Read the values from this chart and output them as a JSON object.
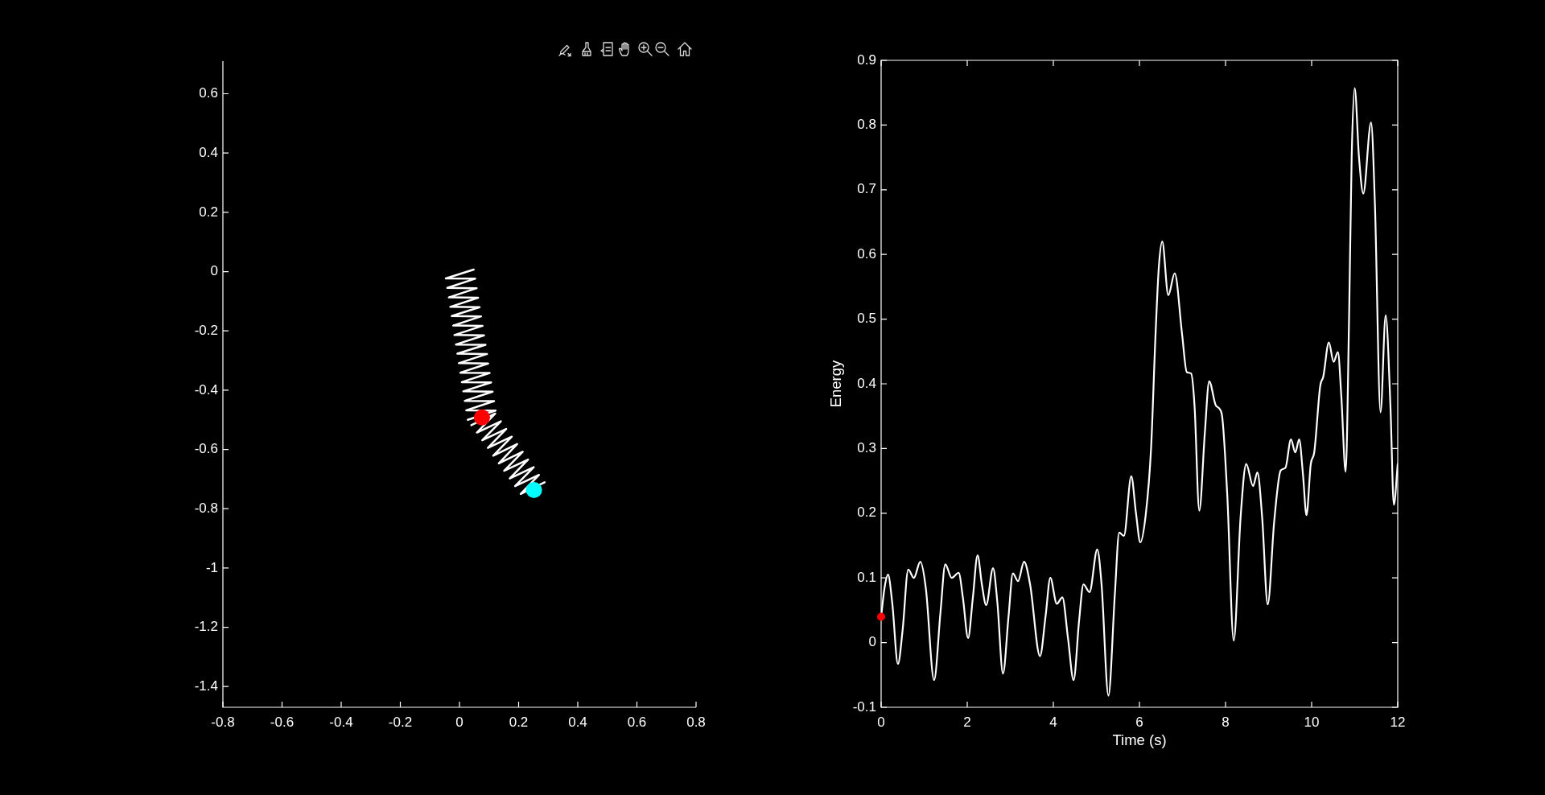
{
  "chart_data": [
    {
      "type": "line",
      "xlim": [
        -0.8,
        0.8
      ],
      "xticks": [
        -0.8,
        -0.6,
        -0.4,
        -0.2,
        0,
        0.2,
        0.4,
        0.6,
        0.8
      ],
      "ylim": [
        -1.47,
        0.71
      ],
      "yticks": [
        -1.4,
        -1.2,
        -1,
        -0.8,
        -0.6,
        -0.4,
        -0.2,
        0,
        0.2,
        0.4,
        0.6
      ],
      "series": [
        {
          "color": "#ffffff",
          "x": [
            0.048,
            -0.046,
            0.053,
            -0.041,
            0.058,
            -0.036,
            0.063,
            -0.031,
            0.068,
            -0.026,
            0.073,
            -0.021,
            0.078,
            -0.017,
            0.083,
            -0.012,
            0.088,
            -0.007,
            0.093,
            -0.002,
            0.097,
            0.003,
            0.102,
            0.008,
            0.107,
            0.013,
            0.112,
            0.018,
            0.117,
            0.023,
            0.122,
            0.028
          ],
          "values": [
            0.007,
            -0.023,
            -0.024,
            -0.055,
            -0.056,
            -0.087,
            -0.088,
            -0.119,
            -0.12,
            -0.15,
            -0.151,
            -0.182,
            -0.183,
            -0.214,
            -0.215,
            -0.246,
            -0.247,
            -0.277,
            -0.278,
            -0.309,
            -0.31,
            -0.341,
            -0.342,
            -0.373,
            -0.374,
            -0.404,
            -0.405,
            -0.436,
            -0.437,
            -0.468,
            -0.469,
            -0.5
          ]
        },
        {
          "color": "#ffffff",
          "x": [
            0.04,
            0.121,
            0.059,
            0.14,
            0.077,
            0.158,
            0.096,
            0.177,
            0.114,
            0.195,
            0.133,
            0.214,
            0.151,
            0.232,
            0.17,
            0.251,
            0.188,
            0.269,
            0.207,
            0.288
          ],
          "values": [
            -0.518,
            -0.479,
            -0.543,
            -0.505,
            -0.569,
            -0.531,
            -0.595,
            -0.557,
            -0.621,
            -0.582,
            -0.647,
            -0.608,
            -0.672,
            -0.634,
            -0.698,
            -0.66,
            -0.724,
            -0.686,
            -0.75,
            -0.711
          ]
        },
        {
          "type": "scatter",
          "color": "#ff0000",
          "marker": "circle",
          "x": [
            0.076
          ],
          "values": [
            -0.492
          ]
        },
        {
          "type": "scatter",
          "color": "#00ffff",
          "marker": "circle",
          "x": [
            0.252
          ],
          "values": [
            -0.737
          ]
        }
      ]
    },
    {
      "type": "line",
      "xlabel": "Time (s)",
      "ylabel": "Energy",
      "xlim": [
        0,
        12
      ],
      "xticks": [
        0,
        2,
        4,
        6,
        8,
        10,
        12
      ],
      "ylim": [
        -0.1,
        0.9
      ],
      "yticks": [
        -0.1,
        0,
        0.1,
        0.2,
        0.3,
        0.4,
        0.5,
        0.6,
        0.7,
        0.8,
        0.9
      ],
      "series": [
        {
          "color": "#ffffff",
          "x": [
            0,
            0.08,
            0.16,
            0.26,
            0.39,
            0.5,
            0.63,
            0.76,
            0.91,
            1.04,
            1.23,
            1.38,
            1.49,
            1.64,
            1.8,
            1.9,
            2.02,
            2.13,
            2.24,
            2.34,
            2.44,
            2.6,
            2.7,
            2.83,
            2.96,
            3.06,
            3.18,
            3.32,
            3.46,
            3.69,
            3.82,
            3.93,
            4.08,
            4.21,
            4.34,
            4.47,
            4.6,
            4.7,
            4.84,
            5.02,
            5.12,
            5.28,
            5.43,
            5.53,
            5.64,
            5.81,
            5.92,
            6.02,
            6.15,
            6.27,
            6.37,
            6.45,
            6.53,
            6.67,
            6.82,
            6.99,
            7.1,
            7.2,
            7.28,
            7.39,
            7.52,
            7.62,
            7.78,
            7.91,
            8.04,
            8.19,
            8.35,
            8.48,
            8.64,
            8.74,
            8.85,
            8.98,
            9.13,
            9.28,
            9.39,
            9.52,
            9.62,
            9.71,
            9.8,
            9.88,
            9.98,
            10.06,
            10.2,
            10.27,
            10.4,
            10.51,
            10.61,
            10.69,
            10.79,
            10.87,
            10.93,
            11,
            11.1,
            11.2,
            11.38,
            11.47,
            11.6,
            11.72,
            11.83,
            11.91,
            12
          ],
          "values": [
            0.04,
            0.085,
            0.105,
            0.06,
            -0.033,
            0.02,
            0.113,
            0.1,
            0.125,
            0.083,
            -0.058,
            0.048,
            0.121,
            0.1,
            0.108,
            0.069,
            0.007,
            0.069,
            0.135,
            0.09,
            0.058,
            0.115,
            0.062,
            -0.048,
            0.041,
            0.107,
            0.095,
            0.125,
            0.09,
            -0.021,
            0.041,
            0.1,
            0.06,
            0.07,
            0.007,
            -0.058,
            0.035,
            0.09,
            0.078,
            0.144,
            0.09,
            -0.082,
            0.076,
            0.17,
            0.165,
            0.257,
            0.2,
            0.155,
            0.2,
            0.3,
            0.47,
            0.58,
            0.62,
            0.537,
            0.571,
            0.477,
            0.418,
            0.416,
            0.366,
            0.204,
            0.325,
            0.404,
            0.366,
            0.354,
            0.228,
            0.003,
            0.194,
            0.276,
            0.242,
            0.263,
            0.194,
            0.059,
            0.187,
            0.266,
            0.27,
            0.314,
            0.294,
            0.314,
            0.259,
            0.197,
            0.276,
            0.294,
            0.397,
            0.411,
            0.464,
            0.434,
            0.449,
            0.38,
            0.264,
            0.504,
            0.75,
            0.857,
            0.75,
            0.694,
            0.804,
            0.677,
            0.356,
            0.506,
            0.366,
            0.213,
            0.276
          ]
        },
        {
          "type": "scatter",
          "color": "#ff0000",
          "marker": "circle",
          "x": [
            0
          ],
          "values": [
            0.04
          ]
        }
      ]
    }
  ]
}
